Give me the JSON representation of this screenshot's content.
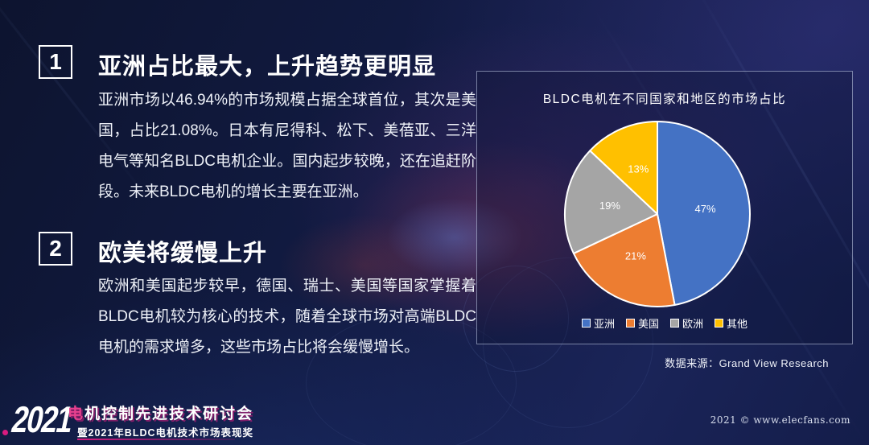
{
  "slide": {
    "sections": [
      {
        "number": "1",
        "title": "亚洲占比最大，上升趋势更明显",
        "body": "亚洲市场以46.94%的市场规模占据全球首位，其次是美国，占比21.08%。日本有尼得科、松下、美蓓亚、三洋电气等知名BLDC电机企业。国内起步较晚，还在追赶阶段。未来BLDC电机的增长主要在亚洲。"
      },
      {
        "number": "2",
        "title": "欧美将缓慢上升",
        "body": "欧洲和美国起步较早，德国、瑞士、美国等国家掌握着BLDC电机较为核心的技术，随着全球市场对高端BLDC电机的需求增多，这些市场占比将会缓慢增长。"
      }
    ],
    "source_note": "数据来源：Grand View Research",
    "footer": {
      "year_logo": "2021",
      "event_title_prefix": "电",
      "event_title_rest": "机控制先进技术研讨会",
      "event_subtitle": "暨2021年BLDC电机技术市场表现奖",
      "copyright": "2021 © www.elecfans.com"
    },
    "accent_colors": {
      "magenta": "#d81b7f",
      "panel_border": "#c8d4ee"
    }
  },
  "chart_data": {
    "type": "pie",
    "title": "BLDC电机在不同国家和地区的市场占比",
    "categories": [
      "亚洲",
      "美国",
      "欧洲",
      "其他"
    ],
    "values": [
      47,
      21,
      19,
      13
    ],
    "labels": [
      "47%",
      "21%",
      "19%",
      "13%"
    ],
    "colors": [
      "#4472C4",
      "#ED7D31",
      "#A5A5A5",
      "#FFC000"
    ],
    "start_angle_deg": 0,
    "direction": "clockwise",
    "legend_position": "bottom",
    "slice_outline": "#ffffff"
  }
}
